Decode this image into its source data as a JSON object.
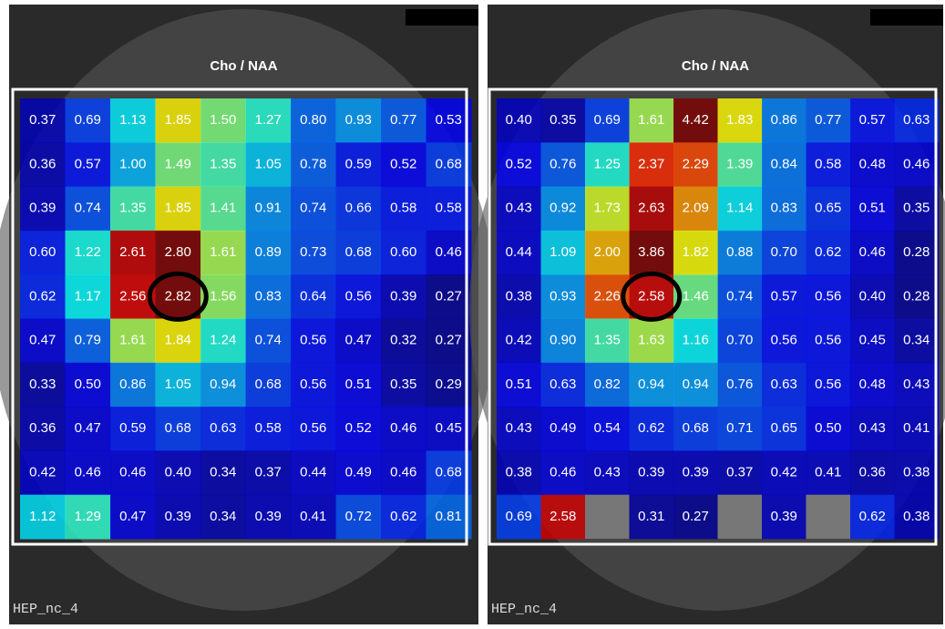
{
  "panels": [
    {
      "title": "Cho / NAA",
      "footer": "HEP_nc_4",
      "grid": [
        [
          "0.37",
          "0.69",
          "1.13",
          "1.85",
          "1.50",
          "1.27",
          "0.80",
          "0.93",
          "0.77",
          "0.53"
        ],
        [
          "0.36",
          "0.57",
          "1.00",
          "1.49",
          "1.35",
          "1.05",
          "0.78",
          "0.59",
          "0.52",
          "0.68"
        ],
        [
          "0.39",
          "0.74",
          "1.35",
          "1.85",
          "1.41",
          "0.91",
          "0.74",
          "0.66",
          "0.58",
          "0.58"
        ],
        [
          "0.60",
          "1.22",
          "2.61",
          "2.80",
          "1.61",
          "0.89",
          "0.73",
          "0.68",
          "0.60",
          "0.46"
        ],
        [
          "0.62",
          "1.17",
          "2.56",
          "2.82",
          "1.56",
          "0.83",
          "0.64",
          "0.56",
          "0.39",
          "0.27"
        ],
        [
          "0.47",
          "0.79",
          "1.61",
          "1.84",
          "1.24",
          "0.74",
          "0.56",
          "0.47",
          "0.32",
          "0.27"
        ],
        [
          "0.33",
          "0.50",
          "0.86",
          "1.05",
          "0.94",
          "0.68",
          "0.56",
          "0.51",
          "0.35",
          "0.29"
        ],
        [
          "0.36",
          "0.47",
          "0.59",
          "0.68",
          "0.63",
          "0.58",
          "0.56",
          "0.52",
          "0.46",
          "0.45"
        ],
        [
          "0.42",
          "0.46",
          "0.46",
          "0.40",
          "0.34",
          "0.37",
          "0.44",
          "0.49",
          "0.46",
          "0.68"
        ],
        [
          "1.12",
          "1.29",
          "0.47",
          "0.39",
          "0.34",
          "0.39",
          "0.41",
          "0.72",
          "0.62",
          "0.81"
        ]
      ]
    },
    {
      "title": "Cho / NAA",
      "footer": "HEP_nc_4",
      "grid": [
        [
          "0.40",
          "0.35",
          "0.69",
          "1.61",
          "4.42",
          "1.83",
          "0.86",
          "0.77",
          "0.57",
          "0.63"
        ],
        [
          "0.52",
          "0.76",
          "1.25",
          "2.37",
          "2.29",
          "1.39",
          "0.84",
          "0.58",
          "0.48",
          "0.46"
        ],
        [
          "0.43",
          "0.92",
          "1.73",
          "2.63",
          "2.09",
          "1.14",
          "0.83",
          "0.65",
          "0.51",
          "0.35"
        ],
        [
          "0.44",
          "1.09",
          "2.00",
          "3.86",
          "1.82",
          "0.88",
          "0.70",
          "0.62",
          "0.46",
          "0.28"
        ],
        [
          "0.38",
          "0.93",
          "2.26",
          "2.58",
          "1.46",
          "0.74",
          "0.57",
          "0.56",
          "0.40",
          "0.28"
        ],
        [
          "0.42",
          "0.90",
          "1.35",
          "1.63",
          "1.16",
          "0.70",
          "0.56",
          "0.56",
          "0.45",
          "0.34"
        ],
        [
          "0.51",
          "0.63",
          "0.82",
          "0.94",
          "0.94",
          "0.76",
          "0.63",
          "0.56",
          "0.48",
          "0.43"
        ],
        [
          "0.43",
          "0.49",
          "0.54",
          "0.62",
          "0.68",
          "0.71",
          "0.65",
          "0.50",
          "0.43",
          "0.41"
        ],
        [
          "0.38",
          "0.46",
          "0.43",
          "0.39",
          "0.39",
          "0.37",
          "0.42",
          "0.41",
          "0.36",
          "0.38"
        ],
        [
          "0.69",
          "2.58",
          null,
          "0.31",
          "0.27",
          null,
          "0.39",
          null,
          "0.62",
          "0.38"
        ]
      ]
    }
  ]
}
